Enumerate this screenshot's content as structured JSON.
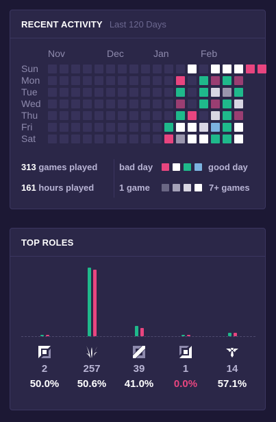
{
  "activity": {
    "title": "RECENT ACTIVITY",
    "subtitle": "Last 120 Days",
    "months": [
      "Nov",
      "Dec",
      "Jan",
      "Feb"
    ],
    "days": [
      "Sun",
      "Mon",
      "Tue",
      "Wed",
      "Thu",
      "Fri",
      "Sat"
    ],
    "grid": [
      "eeeeeeeeeeeeWeWWWPP",
      "eeeeeeeeeeePeTmTm",
      "eeeeeeeeeeeTeTSsT",
      "eeeeeeeeeeemeTmTS",
      "eeeeeeeeeeeTPeSTm",
      "eeeeeeeeeeTWWSBTW",
      "eeeeeeeeeePsWWTTW"
    ],
    "games_count": "313",
    "games_label": " games played",
    "hours_count": "161",
    "hours_label": " hours played",
    "bad_day_label": "bad day",
    "good_day_label": "good day",
    "one_game_label": "1 game",
    "many_games_label": "7+ games"
  },
  "roles": {
    "title": "TOP ROLES",
    "items": [
      {
        "icon": "top-lane-icon",
        "count": "2",
        "pct": "50.0%",
        "games_bar": 2,
        "win_bar": 1,
        "pct_color": "#ffffff"
      },
      {
        "icon": "jungle-icon",
        "count": "257",
        "pct": "50.6%",
        "games_bar": 257,
        "win_bar": 130,
        "pct_color": "#ffffff"
      },
      {
        "icon": "mid-lane-icon",
        "count": "39",
        "pct": "41.0%",
        "games_bar": 39,
        "win_bar": 16,
        "pct_color": "#ffffff"
      },
      {
        "icon": "bot-lane-icon",
        "count": "1",
        "pct": "0.0%",
        "games_bar": 1,
        "win_bar": 0,
        "pct_color": "#e8457f"
      },
      {
        "icon": "support-icon",
        "count": "14",
        "pct": "57.1%",
        "games_bar": 14,
        "win_bar": 8,
        "pct_color": "#ffffff"
      }
    ]
  },
  "colors": {
    "empty": "#37325a",
    "win": "#1fb98b",
    "loss": "#e8457f",
    "win_muted": "#2a8a74",
    "loss_muted": "#9a3e72",
    "gray": "#9a96ad",
    "silver": "#d8d6e2",
    "white": "#ffffff",
    "blue": "#7cb3e0",
    "legend_dark": "#6a6784",
    "legend_mid": "#a5a2b8"
  }
}
